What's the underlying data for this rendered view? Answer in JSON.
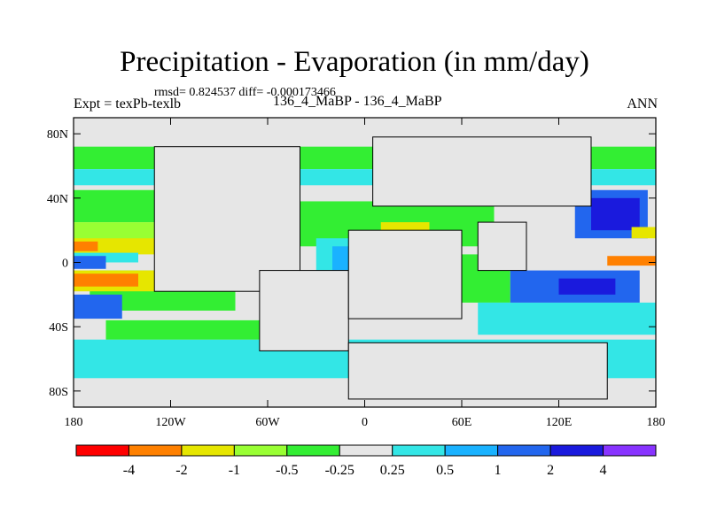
{
  "chart_data": {
    "type": "heatmap",
    "title": "Precipitation - Evaporation (in mm/day)",
    "stats_line": "rmsd= 0.824537 diff= -0.000173466",
    "left_label": "Expt = texPb-texlb",
    "center_label": "136_4_MaBP - 136_4_MaBP",
    "right_label": "ANN",
    "x_ticks": [
      "180",
      "120W",
      "60W",
      "0",
      "60E",
      "120E",
      "180"
    ],
    "y_ticks": [
      "80N",
      "40N",
      "0",
      "40S",
      "80S"
    ],
    "x_range": [
      -180,
      180
    ],
    "y_range": [
      -90,
      90
    ],
    "colorbar": {
      "colors": [
        "#ff0000",
        "#ff8000",
        "#e6e600",
        "#99ff33",
        "#33ee33",
        "#e6e6e6",
        "#33e6e6",
        "#1ab2ff",
        "#2266ee",
        "#1a1add",
        "#8833ff"
      ],
      "labels": [
        "-4",
        "-2",
        "-1",
        "-0.5",
        "-0.25",
        "0.25",
        "0.5",
        "1",
        "2",
        "4"
      ]
    },
    "regions": [
      {
        "name": "nh-high-lat-band",
        "color": "#33ee33",
        "lon": [
          -180,
          180
        ],
        "lat": [
          58,
          72
        ]
      },
      {
        "name": "nh-high-lat-cyan",
        "color": "#33e6e6",
        "lon": [
          -180,
          180
        ],
        "lat": [
          48,
          58
        ]
      },
      {
        "name": "n-pacific-green",
        "color": "#33ee33",
        "lon": [
          -180,
          -80
        ],
        "lat": [
          25,
          45
        ]
      },
      {
        "name": "n-pacific-yellow",
        "color": "#99ff33",
        "lon": [
          -180,
          -90
        ],
        "lat": [
          12,
          25
        ]
      },
      {
        "name": "pacific-itcz-yellow",
        "color": "#e6e600",
        "lon": [
          -180,
          -120
        ],
        "lat": [
          5,
          15
        ]
      },
      {
        "name": "pacific-itcz-orange",
        "color": "#ff8000",
        "lon": [
          -180,
          -165
        ],
        "lat": [
          7,
          13
        ]
      },
      {
        "name": "pacific-dry-cyan",
        "color": "#33e6e6",
        "lon": [
          -180,
          -140
        ],
        "lat": [
          0,
          6
        ]
      },
      {
        "name": "pacific-dry-blue",
        "color": "#2266ee",
        "lon": [
          -180,
          -160
        ],
        "lat": [
          -4,
          4
        ]
      },
      {
        "name": "s-pacific-green",
        "color": "#33ee33",
        "lon": [
          -170,
          -80
        ],
        "lat": [
          -30,
          -5
        ]
      },
      {
        "name": "s-pacific-yellow",
        "color": "#e6e600",
        "lon": [
          -180,
          -125
        ],
        "lat": [
          -18,
          -5
        ]
      },
      {
        "name": "s-pacific-orange",
        "color": "#ff8000",
        "lon": [
          -180,
          -140
        ],
        "lat": [
          -15,
          -7
        ]
      },
      {
        "name": "s-pacific-blue",
        "color": "#2266ee",
        "lon": [
          -180,
          -150
        ],
        "lat": [
          -35,
          -20
        ]
      },
      {
        "name": "southern-ocean-cyan",
        "color": "#33e6e6",
        "lon": [
          -180,
          180
        ],
        "lat": [
          -72,
          -48
        ]
      },
      {
        "name": "southern-ocean-green",
        "color": "#33ee33",
        "lon": [
          -160,
          -60
        ],
        "lat": [
          -48,
          -36
        ]
      },
      {
        "name": "tethys-green",
        "color": "#33ee33",
        "lon": [
          -40,
          80
        ],
        "lat": [
          10,
          38
        ]
      },
      {
        "name": "tethys-yellow",
        "color": "#e6e600",
        "lon": [
          10,
          40
        ],
        "lat": [
          15,
          25
        ]
      },
      {
        "name": "atlantic-cyan",
        "color": "#33e6e6",
        "lon": [
          -30,
          10
        ],
        "lat": [
          -15,
          15
        ]
      },
      {
        "name": "atlantic-blue",
        "color": "#1ab2ff",
        "lon": [
          -20,
          0
        ],
        "lat": [
          -8,
          10
        ]
      },
      {
        "name": "indian-ocean-green",
        "color": "#33ee33",
        "lon": [
          30,
          90
        ],
        "lat": [
          -25,
          5
        ]
      },
      {
        "name": "indian-ocean-cyan",
        "color": "#33e6e6",
        "lon": [
          70,
          180
        ],
        "lat": [
          -45,
          -25
        ]
      },
      {
        "name": "w-pacific-blue",
        "color": "#2266ee",
        "lon": [
          90,
          170
        ],
        "lat": [
          -25,
          -5
        ]
      },
      {
        "name": "w-pacific-dark",
        "color": "#1a1add",
        "lon": [
          120,
          155
        ],
        "lat": [
          -20,
          -10
        ]
      },
      {
        "name": "nw-pacific-blue",
        "color": "#2266ee",
        "lon": [
          130,
          175
        ],
        "lat": [
          15,
          45
        ]
      },
      {
        "name": "nw-pacific-dark",
        "color": "#1a1add",
        "lon": [
          140,
          170
        ],
        "lat": [
          20,
          40
        ]
      },
      {
        "name": "e-pacific-orange",
        "color": "#ff8000",
        "lon": [
          150,
          180
        ],
        "lat": [
          -2,
          4
        ]
      },
      {
        "name": "e-pacific-yellow",
        "color": "#e6e600",
        "lon": [
          165,
          180
        ],
        "lat": [
          15,
          22
        ]
      }
    ],
    "continents": [
      {
        "name": "north-america",
        "lon": [
          -130,
          -40
        ],
        "lat": [
          -18,
          72
        ]
      },
      {
        "name": "south-america",
        "lon": [
          -65,
          -10
        ],
        "lat": [
          -55,
          -5
        ]
      },
      {
        "name": "eurasia",
        "lon": [
          5,
          140
        ],
        "lat": [
          35,
          78
        ]
      },
      {
        "name": "africa",
        "lon": [
          -10,
          60
        ],
        "lat": [
          -35,
          20
        ]
      },
      {
        "name": "australia-antarctica",
        "lon": [
          -10,
          150
        ],
        "lat": [
          -85,
          -50
        ]
      },
      {
        "name": "india",
        "lon": [
          70,
          100
        ],
        "lat": [
          -5,
          25
        ]
      }
    ]
  }
}
